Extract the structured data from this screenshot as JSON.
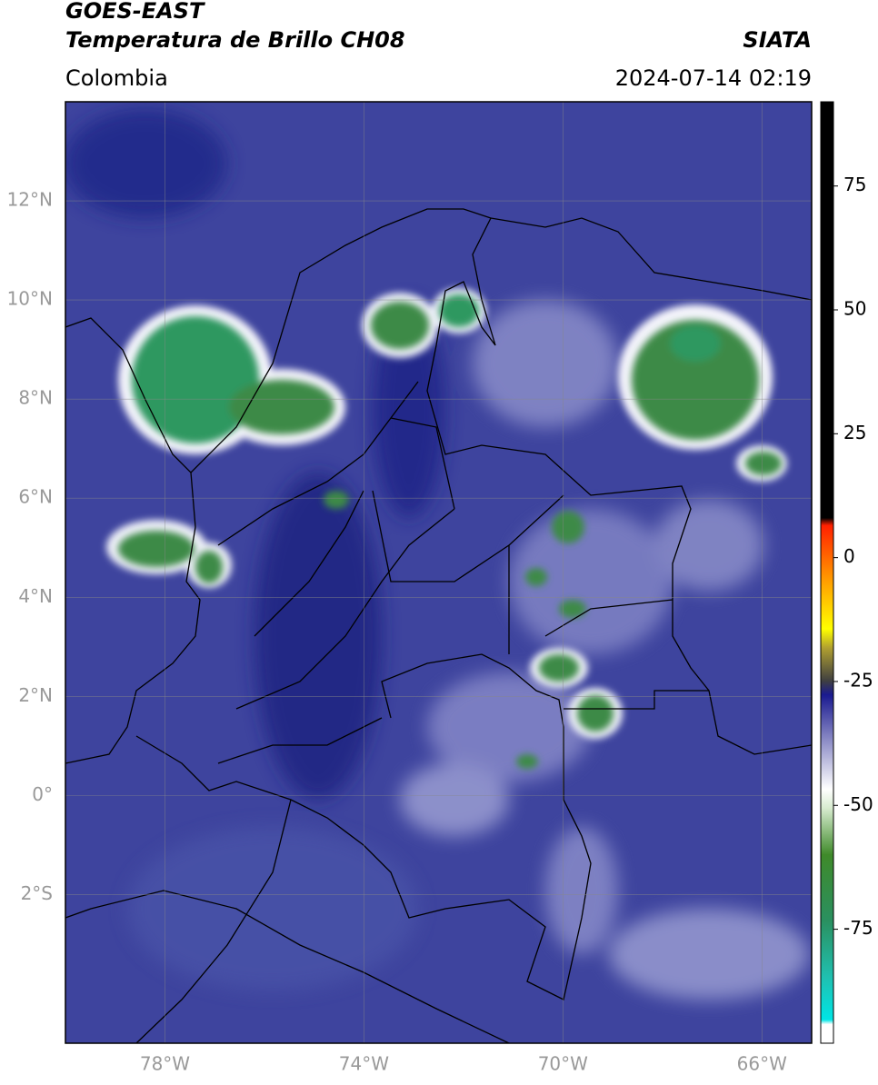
{
  "header": {
    "title": "GOES-EAST",
    "subtitle": "Temperatura de Brillo CH08",
    "source": "SIATA",
    "region": "Colombia",
    "datetime": "2024-07-14 02:19"
  },
  "map": {
    "xlim": [
      -80,
      -65
    ],
    "ylim": [
      -5,
      14
    ],
    "xticks": [
      {
        "value": -78,
        "label": "78°W"
      },
      {
        "value": -74,
        "label": "74°W"
      },
      {
        "value": -70,
        "label": "70°W"
      },
      {
        "value": -66,
        "label": "66°W"
      }
    ],
    "yticks": [
      {
        "value": 12,
        "label": "12°N"
      },
      {
        "value": 10,
        "label": "10°N"
      },
      {
        "value": 8,
        "label": "8°N"
      },
      {
        "value": 6,
        "label": "6°N"
      },
      {
        "value": 4,
        "label": "4°N"
      },
      {
        "value": 2,
        "label": "2°N"
      },
      {
        "value": 0,
        "label": "0°"
      },
      {
        "value": -2,
        "label": "2°S"
      }
    ],
    "grid": true
  },
  "colorbar": {
    "lim": [
      -98,
      92
    ],
    "ticks": [
      75,
      50,
      25,
      0,
      -25,
      -50,
      -75
    ]
  }
}
